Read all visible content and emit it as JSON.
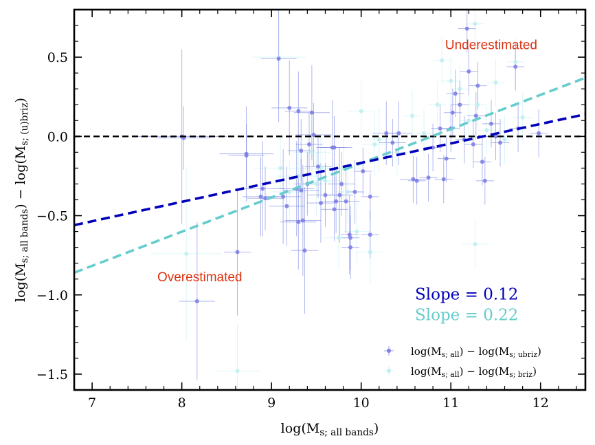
{
  "chart_data": {
    "type": "scatter",
    "xlabel": "log(M_{s; all bands})",
    "ylabel": "log(M_{s; all bands}) − log(M_{s; (u)briz})",
    "xlim": [
      6.8,
      12.5
    ],
    "ylim": [
      -1.6,
      0.8
    ],
    "x_ticks": [
      7,
      8,
      9,
      10,
      11,
      12
    ],
    "x_tick_labels": [
      "7",
      "8",
      "9",
      "10",
      "11",
      "12"
    ],
    "y_ticks": [
      -1.5,
      -1.0,
      -0.5,
      0.0,
      0.5
    ],
    "y_tick_labels": [
      "−1.5",
      "−1.0",
      "−0.5",
      "0.0",
      "0.5"
    ],
    "reference_line": {
      "y": 0.0,
      "style": "dashed",
      "color": "#000000"
    },
    "annotations": [
      {
        "text": "Underestimated",
        "x": 11.45,
        "y": 0.55,
        "color": "#dd3311"
      },
      {
        "text": "Overestimated",
        "x": 8.2,
        "y": -0.915,
        "color": "#dd3311"
      }
    ],
    "slope_labels": [
      {
        "text": "Slope = 0.12",
        "x": 10.6,
        "y": -1.03,
        "color": "#0000bb"
      },
      {
        "text": "Slope = 0.22",
        "x": 10.6,
        "y": -1.16,
        "color": "#66cccc"
      }
    ],
    "series": [
      {
        "name": "ubriz",
        "label": "log(M_{s; all}) − log(M_{s; ubriz})",
        "color": "#5555dd",
        "point_color": "#7f7fe6",
        "errbar_color": "#6b78e0",
        "fit": {
          "slope": 0.12,
          "x0": 6.8,
          "y0": -0.56,
          "x1": 12.5,
          "y1": 0.14,
          "color": "#0000bb"
        },
        "points": [
          {
            "x": 8.0,
            "y": 0.0,
            "xerr": 0.5,
            "yerr": 0.55
          },
          {
            "x": 8.02,
            "y": -0.01,
            "xerr": 0.3,
            "yerr": 0.2
          },
          {
            "x": 8.17,
            "y": -1.04,
            "xerr": 0.2,
            "yerr": 0.5
          },
          {
            "x": 8.62,
            "y": -0.73,
            "xerr": 0.15,
            "yerr": 0.4
          },
          {
            "x": 8.72,
            "y": -0.11,
            "xerr": 0.3,
            "yerr": 0.3
          },
          {
            "x": 8.72,
            "y": -0.12,
            "xerr": 0.2,
            "yerr": 0.2
          },
          {
            "x": 8.88,
            "y": -0.38,
            "xerr": 0.2,
            "yerr": 0.25
          },
          {
            "x": 8.9,
            "y": -0.33,
            "xerr": 0.25,
            "yerr": 0.3
          },
          {
            "x": 8.93,
            "y": -0.39,
            "xerr": 0.2,
            "yerr": 0.2
          },
          {
            "x": 9.08,
            "y": 0.49,
            "xerr": 0.2,
            "yerr": 0.4
          },
          {
            "x": 9.13,
            "y": -0.38,
            "xerr": 0.2,
            "yerr": 0.3
          },
          {
            "x": 9.17,
            "y": -0.44,
            "xerr": 0.2,
            "yerr": 0.25
          },
          {
            "x": 9.2,
            "y": 0.18,
            "xerr": 0.2,
            "yerr": 0.3
          },
          {
            "x": 9.28,
            "y": -0.33,
            "xerr": 0.2,
            "yerr": 0.3
          },
          {
            "x": 9.3,
            "y": 0.16,
            "xerr": 0.15,
            "yerr": 0.25
          },
          {
            "x": 9.33,
            "y": -0.34,
            "xerr": 0.2,
            "yerr": 0.2
          },
          {
            "x": 9.33,
            "y": -0.09,
            "xerr": 0.15,
            "yerr": 0.2
          },
          {
            "x": 9.3,
            "y": -0.54,
            "xerr": 0.2,
            "yerr": 0.3
          },
          {
            "x": 9.35,
            "y": -0.53,
            "xerr": 0.2,
            "yerr": 0.35
          },
          {
            "x": 9.37,
            "y": -0.72,
            "xerr": 0.15,
            "yerr": 0.4
          },
          {
            "x": 9.4,
            "y": -0.3,
            "xerr": 0.15,
            "yerr": 0.2
          },
          {
            "x": 9.42,
            "y": -0.05,
            "xerr": 0.15,
            "yerr": 0.2
          },
          {
            "x": 9.45,
            "y": 0.15,
            "xerr": 0.2,
            "yerr": 0.3
          },
          {
            "x": 9.47,
            "y": 0.01,
            "xerr": 0.2,
            "yerr": 0.2
          },
          {
            "x": 9.52,
            "y": -0.19,
            "xerr": 0.15,
            "yerr": 0.2
          },
          {
            "x": 9.55,
            "y": -0.42,
            "xerr": 0.15,
            "yerr": 0.25
          },
          {
            "x": 9.6,
            "y": -0.37,
            "xerr": 0.2,
            "yerr": 0.2
          },
          {
            "x": 9.68,
            "y": -0.07,
            "xerr": 0.15,
            "yerr": 0.3
          },
          {
            "x": 9.7,
            "y": -0.07,
            "xerr": 0.2,
            "yerr": 0.2
          },
          {
            "x": 9.7,
            "y": -0.46,
            "xerr": 0.15,
            "yerr": 0.2
          },
          {
            "x": 9.72,
            "y": -0.41,
            "xerr": 0.15,
            "yerr": 0.2
          },
          {
            "x": 9.76,
            "y": -0.37,
            "xerr": 0.15,
            "yerr": 0.3
          },
          {
            "x": 9.78,
            "y": -0.3,
            "xerr": 0.15,
            "yerr": 0.2
          },
          {
            "x": 9.83,
            "y": -0.41,
            "xerr": 0.15,
            "yerr": 0.2
          },
          {
            "x": 9.87,
            "y": -0.62,
            "xerr": 0.1,
            "yerr": 0.25
          },
          {
            "x": 9.88,
            "y": -0.64,
            "xerr": 0.1,
            "yerr": 0.2
          },
          {
            "x": 9.88,
            "y": -0.7,
            "xerr": 0.1,
            "yerr": 0.2
          },
          {
            "x": 9.93,
            "y": -0.35,
            "xerr": 0.1,
            "yerr": 0.2
          },
          {
            "x": 10.02,
            "y": -0.22,
            "xerr": 0.1,
            "yerr": 0.15
          },
          {
            "x": 10.1,
            "y": -0.62,
            "xerr": 0.1,
            "yerr": 0.15
          },
          {
            "x": 10.1,
            "y": -0.38,
            "xerr": 0.1,
            "yerr": 0.15
          },
          {
            "x": 10.28,
            "y": 0.02,
            "xerr": 0.15,
            "yerr": 0.2
          },
          {
            "x": 10.35,
            "y": -0.04,
            "xerr": 0.15,
            "yerr": 0.15
          },
          {
            "x": 10.42,
            "y": 0.02,
            "xerr": 0.15,
            "yerr": 0.2
          },
          {
            "x": 10.58,
            "y": -0.27,
            "xerr": 0.15,
            "yerr": 0.15
          },
          {
            "x": 10.62,
            "y": -0.28,
            "xerr": 0.1,
            "yerr": 0.15
          },
          {
            "x": 10.75,
            "y": -0.26,
            "xerr": 0.1,
            "yerr": 0.15
          },
          {
            "x": 10.8,
            "y": -0.07,
            "xerr": 0.1,
            "yerr": 0.15
          },
          {
            "x": 10.88,
            "y": 0.05,
            "xerr": 0.1,
            "yerr": 0.15
          },
          {
            "x": 10.92,
            "y": -0.27,
            "xerr": 0.1,
            "yerr": 0.15
          },
          {
            "x": 10.95,
            "y": -0.14,
            "xerr": 0.1,
            "yerr": 0.15
          },
          {
            "x": 11.0,
            "y": 0.05,
            "xerr": 0.1,
            "yerr": 0.15
          },
          {
            "x": 11.02,
            "y": 0.15,
            "xerr": 0.1,
            "yerr": 0.15
          },
          {
            "x": 11.05,
            "y": 0.27,
            "xerr": 0.1,
            "yerr": 0.15
          },
          {
            "x": 11.1,
            "y": 0.2,
            "xerr": 0.1,
            "yerr": 0.15
          },
          {
            "x": 11.15,
            "y": -0.02,
            "xerr": 0.1,
            "yerr": 0.15
          },
          {
            "x": 11.18,
            "y": 0.68,
            "xerr": 0.1,
            "yerr": 0.15
          },
          {
            "x": 11.2,
            "y": 0.41,
            "xerr": 0.1,
            "yerr": 0.15
          },
          {
            "x": 11.25,
            "y": -0.05,
            "xerr": 0.1,
            "yerr": 0.15
          },
          {
            "x": 11.28,
            "y": 0.13,
            "xerr": 0.1,
            "yerr": 0.15
          },
          {
            "x": 11.3,
            "y": 0.32,
            "xerr": 0.1,
            "yerr": 0.15
          },
          {
            "x": 11.35,
            "y": -0.16,
            "xerr": 0.1,
            "yerr": 0.15
          },
          {
            "x": 11.38,
            "y": -0.28,
            "xerr": 0.1,
            "yerr": 0.15
          },
          {
            "x": 11.45,
            "y": 0.08,
            "xerr": 0.1,
            "yerr": 0.15
          },
          {
            "x": 11.5,
            "y": 0.0,
            "xerr": 0.1,
            "yerr": 0.15
          },
          {
            "x": 11.55,
            "y": -0.04,
            "xerr": 0.1,
            "yerr": 0.15
          },
          {
            "x": 11.72,
            "y": 0.44,
            "xerr": 0.1,
            "yerr": 0.15
          },
          {
            "x": 11.75,
            "y": 0.05,
            "xerr": 0.1,
            "yerr": 0.15
          },
          {
            "x": 11.98,
            "y": 0.02,
            "xerr": 0.1,
            "yerr": 0.15
          }
        ]
      },
      {
        "name": "briz",
        "label": "log(M_{s; all}) − log(M_{s; briz})",
        "color": "#66cccc",
        "point_color": "#bfeef0",
        "errbar_color": "#bfeef0",
        "fit": {
          "slope": 0.22,
          "x0": 6.8,
          "y0": -0.86,
          "x1": 12.5,
          "y1": 0.37,
          "color": "#66cccc"
        },
        "points": [
          {
            "x": 8.05,
            "y": -0.74,
            "xerr": 0.4,
            "yerr": 0.55
          },
          {
            "x": 8.62,
            "y": -1.48,
            "xerr": 0.25,
            "yerr": 0.3
          },
          {
            "x": 9.08,
            "y": 0.5,
            "xerr": 0.3,
            "yerr": 0.3
          },
          {
            "x": 9.1,
            "y": -0.2,
            "xerr": 0.3,
            "yerr": 0.2
          },
          {
            "x": 9.2,
            "y": -0.35,
            "xerr": 0.2,
            "yerr": 0.2
          },
          {
            "x": 9.3,
            "y": -0.25,
            "xerr": 0.25,
            "yerr": 0.2
          },
          {
            "x": 9.45,
            "y": -0.1,
            "xerr": 0.2,
            "yerr": 0.2
          },
          {
            "x": 9.5,
            "y": -0.3,
            "xerr": 0.2,
            "yerr": 0.2
          },
          {
            "x": 9.55,
            "y": -0.2,
            "xerr": 0.2,
            "yerr": 0.2
          },
          {
            "x": 9.6,
            "y": -0.28,
            "xerr": 0.2,
            "yerr": 0.2
          },
          {
            "x": 9.75,
            "y": -0.64,
            "xerr": 0.15,
            "yerr": 0.2
          },
          {
            "x": 9.8,
            "y": -0.2,
            "xerr": 0.2,
            "yerr": 0.2
          },
          {
            "x": 9.85,
            "y": -0.35,
            "xerr": 0.15,
            "yerr": 0.2
          },
          {
            "x": 9.95,
            "y": -0.6,
            "xerr": 0.15,
            "yerr": 0.2
          },
          {
            "x": 10.0,
            "y": 0.16,
            "xerr": 0.15,
            "yerr": 0.2
          },
          {
            "x": 10.1,
            "y": -0.73,
            "xerr": 0.15,
            "yerr": 0.2
          },
          {
            "x": 10.15,
            "y": -0.05,
            "xerr": 0.15,
            "yerr": 0.2
          },
          {
            "x": 10.2,
            "y": -0.02,
            "xerr": 0.15,
            "yerr": 0.2
          },
          {
            "x": 10.4,
            "y": -0.1,
            "xerr": 0.15,
            "yerr": 0.15
          },
          {
            "x": 10.57,
            "y": 0.13,
            "xerr": 0.1,
            "yerr": 0.15
          },
          {
            "x": 10.7,
            "y": 0.02,
            "xerr": 0.1,
            "yerr": 0.15
          },
          {
            "x": 10.85,
            "y": 0.2,
            "xerr": 0.1,
            "yerr": 0.15
          },
          {
            "x": 10.9,
            "y": 0.48,
            "xerr": 0.1,
            "yerr": 0.15
          },
          {
            "x": 11.0,
            "y": 0.35,
            "xerr": 0.1,
            "yerr": 0.15
          },
          {
            "x": 11.1,
            "y": 0.3,
            "xerr": 0.1,
            "yerr": 0.15
          },
          {
            "x": 11.2,
            "y": 0.1,
            "xerr": 0.1,
            "yerr": 0.15
          },
          {
            "x": 11.27,
            "y": 0.71,
            "xerr": 0.1,
            "yerr": 0.15
          },
          {
            "x": 11.27,
            "y": -0.68,
            "xerr": 0.15,
            "yerr": 0.15
          },
          {
            "x": 11.3,
            "y": 0.2,
            "xerr": 0.1,
            "yerr": 0.15
          },
          {
            "x": 11.4,
            "y": 0.04,
            "xerr": 0.1,
            "yerr": 0.15
          },
          {
            "x": 11.5,
            "y": 0.34,
            "xerr": 0.1,
            "yerr": 0.15
          },
          {
            "x": 11.6,
            "y": -0.02,
            "xerr": 0.1,
            "yerr": 0.15
          },
          {
            "x": 11.72,
            "y": 0.47,
            "xerr": 0.1,
            "yerr": 0.15
          },
          {
            "x": 11.8,
            "y": 0.12,
            "xerr": 0.1,
            "yerr": 0.15
          }
        ]
      }
    ]
  }
}
